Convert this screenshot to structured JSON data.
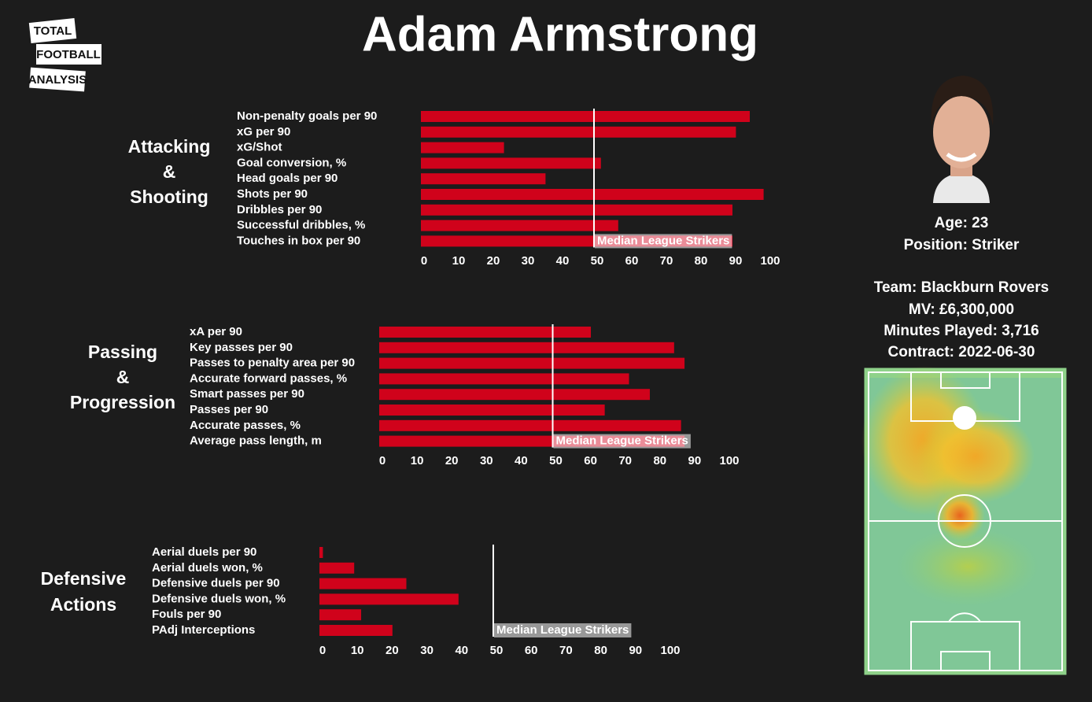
{
  "title": "Adam Armstrong",
  "logo": [
    "TOTAL",
    "FOOTBALL",
    "ANALYSIS"
  ],
  "profile": [
    "Age: 23",
    "Position: Striker",
    "Team: Blackburn Rovers",
    "MV: £6,300,000",
    "Minutes Played: 3,716",
    "Contract: 2022-06-30"
  ],
  "chart_data": [
    {
      "type": "bar",
      "orientation": "horizontal",
      "title": [
        "Attacking",
        "&",
        "Shooting"
      ],
      "categories": [
        "Non-penalty goals per 90",
        "xG per 90",
        "xG/Shot",
        "Goal conversion, %",
        "Head goals per 90",
        "Shots per 90",
        "Dribbles per 90",
        "Successful dribbles, %",
        "Touches in box per 90"
      ],
      "values": [
        95,
        91,
        24,
        52,
        36,
        99,
        90,
        57,
        90
      ],
      "color": "#d0021b",
      "xlim": [
        0,
        100
      ],
      "xticks": [
        0,
        10,
        20,
        30,
        40,
        50,
        60,
        70,
        80,
        90,
        100
      ],
      "median": {
        "value": 50,
        "label": "Median League Strikers"
      }
    },
    {
      "type": "bar",
      "orientation": "horizontal",
      "title": [
        "Passing",
        "&",
        "Progression"
      ],
      "categories": [
        "xA per 90",
        "Key passes per 90",
        "Passes to penalty area per 90",
        "Accurate forward passes, %",
        "Smart passes per 90",
        "Passes per 90",
        "Accurate passes, %",
        "Average pass length, m"
      ],
      "values": [
        61,
        85,
        88,
        72,
        78,
        65,
        87,
        88
      ],
      "color": "#d0021b",
      "xlim": [
        0,
        100
      ],
      "xticks": [
        0,
        10,
        20,
        30,
        40,
        50,
        60,
        70,
        80,
        90,
        100
      ],
      "median": {
        "value": 50,
        "label": "Median League Strikers"
      }
    },
    {
      "type": "bar",
      "orientation": "horizontal",
      "title": [
        "Defensive",
        "Actions"
      ],
      "categories": [
        "Aerial duels per 90",
        "Aerial duels won, %",
        "Defensive duels per 90",
        "Defensive duels won, %",
        "Fouls per 90",
        "PAdj Interceptions"
      ],
      "values": [
        1,
        10,
        25,
        40,
        12,
        21
      ],
      "color": "#d0021b",
      "xlim": [
        0,
        100
      ],
      "xticks": [
        0,
        10,
        20,
        30,
        40,
        50,
        60,
        70,
        80,
        90,
        100
      ],
      "median": {
        "value": 50,
        "label": "Median League Strikers"
      }
    }
  ]
}
